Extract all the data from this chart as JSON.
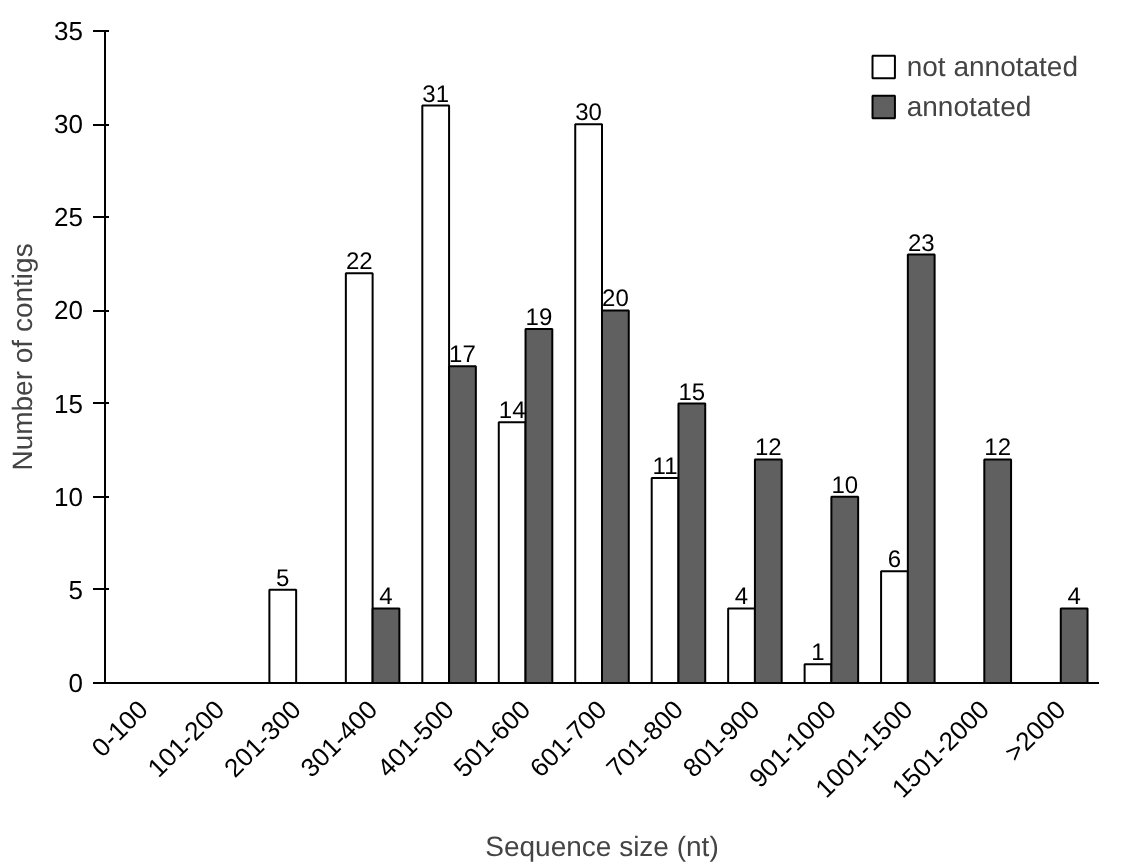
{
  "chart_data": {
    "type": "bar",
    "xlabel": "Sequence size (nt)",
    "ylabel": "Number of contigs",
    "categories": [
      "0-100",
      "101-200",
      "201-300",
      "301-400",
      "401-500",
      "501-600",
      "601-700",
      "701-800",
      "801-900",
      "901-1000",
      "1001-1500",
      "1501-2000",
      ">2000"
    ],
    "series": [
      {
        "name": "not annotated",
        "color": "#ffffff",
        "values": [
          0,
          0,
          5,
          22,
          31,
          14,
          30,
          11,
          4,
          1,
          6,
          0,
          0
        ],
        "value_labels": [
          null,
          null,
          "5",
          "22",
          "31",
          "14",
          "30",
          "11",
          "4",
          "1",
          "6",
          null,
          null
        ]
      },
      {
        "name": "annotated",
        "color": "#606060",
        "values": [
          0,
          0,
          0,
          4,
          17,
          19,
          20,
          15,
          12,
          10,
          23,
          12,
          4
        ],
        "value_labels": [
          null,
          null,
          null,
          "4",
          "17",
          "19",
          "20",
          "15",
          "12",
          "10",
          "23",
          "12",
          "4"
        ]
      }
    ],
    "ylim": [
      0,
      35
    ],
    "yticks": [
      0,
      5,
      10,
      15,
      20,
      25,
      30,
      35
    ],
    "grid": false,
    "legend": "top right"
  }
}
